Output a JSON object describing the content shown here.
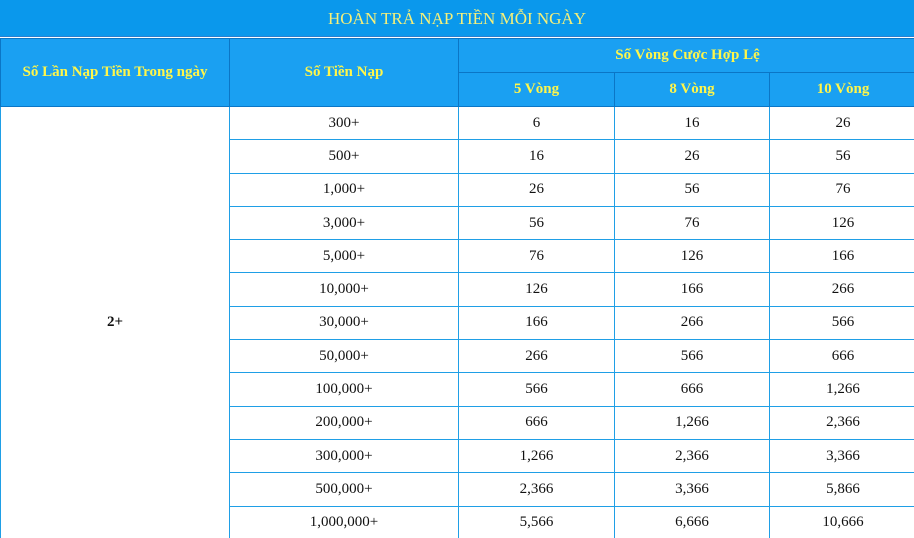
{
  "title": "HOÀN TRẢ NẠP TIỀN MỖI NGÀY",
  "headers": {
    "deposit_count": "Số Lần Nạp Tiền Trong ngày",
    "deposit_amount": "Số Tiền Nạp",
    "valid_rounds": "Số Vòng Cược Hợp Lệ",
    "rounds": [
      "5 Vòng",
      "8 Vòng",
      "10 Vòng"
    ]
  },
  "group_label": "2+",
  "rows": [
    {
      "amount": "300+",
      "r5": "6",
      "r8": "16",
      "r10": "26"
    },
    {
      "amount": "500+",
      "r5": "16",
      "r8": "26",
      "r10": "56"
    },
    {
      "amount": "1,000+",
      "r5": "26",
      "r8": "56",
      "r10": "76"
    },
    {
      "amount": "3,000+",
      "r5": "56",
      "r8": "76",
      "r10": "126"
    },
    {
      "amount": "5,000+",
      "r5": "76",
      "r8": "126",
      "r10": "166"
    },
    {
      "amount": "10,000+",
      "r5": "126",
      "r8": "166",
      "r10": "266"
    },
    {
      "amount": "30,000+",
      "r5": "166",
      "r8": "266",
      "r10": "566"
    },
    {
      "amount": "50,000+",
      "r5": "266",
      "r8": "566",
      "r10": "666"
    },
    {
      "amount": "100,000+",
      "r5": "566",
      "r8": "666",
      "r10": "1,266"
    },
    {
      "amount": "200,000+",
      "r5": "666",
      "r8": "1,266",
      "r10": "2,366"
    },
    {
      "amount": "300,000+",
      "r5": "1,266",
      "r8": "2,366",
      "r10": "3,366"
    },
    {
      "amount": "500,000+",
      "r5": "2,366",
      "r8": "3,366",
      "r10": "5,866"
    },
    {
      "amount": "1,000,000+",
      "r5": "5,566",
      "r8": "6,666",
      "r10": "10,666"
    }
  ]
}
